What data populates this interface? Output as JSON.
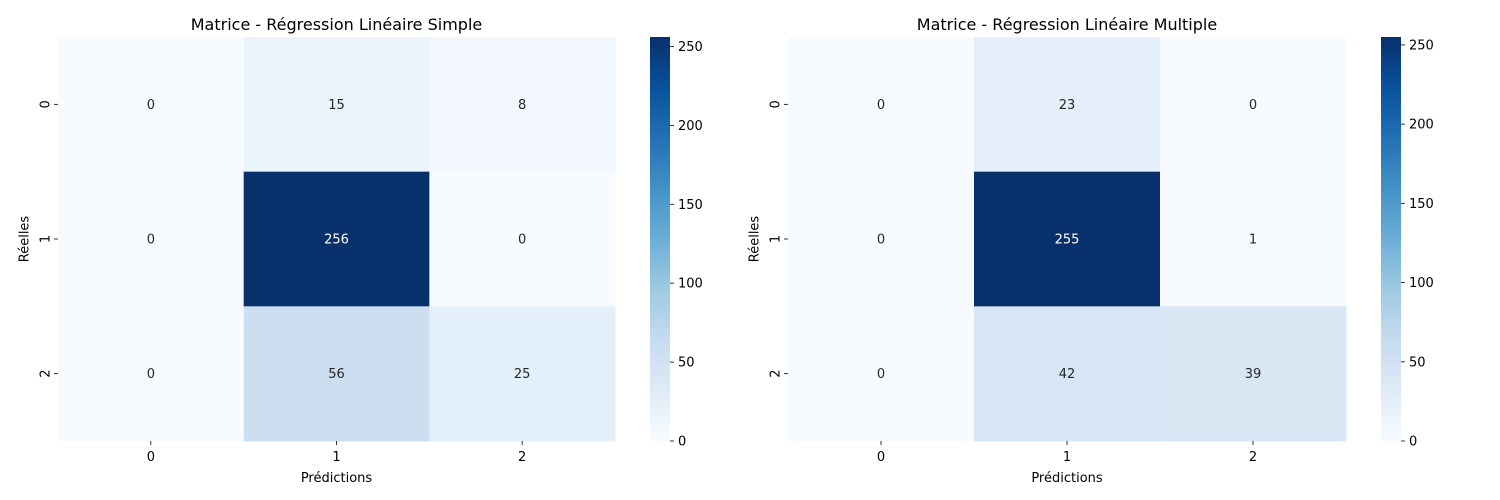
{
  "chart_data": [
    {
      "type": "heatmap",
      "title": "Matrice - Régression Linéaire Simple",
      "xlabel": "Prédictions",
      "ylabel": "Réelles",
      "x_categories": [
        "0",
        "1",
        "2"
      ],
      "y_categories": [
        "0",
        "1",
        "2"
      ],
      "values": [
        [
          0,
          15,
          8
        ],
        [
          0,
          256,
          0
        ],
        [
          0,
          56,
          25
        ]
      ],
      "colorbar": {
        "min": 0,
        "max": 256,
        "ticks": [
          0,
          50,
          100,
          150,
          200,
          250
        ]
      },
      "colormap": "Blues"
    },
    {
      "type": "heatmap",
      "title": "Matrice - Régression Linéaire Multiple",
      "xlabel": "Prédictions",
      "ylabel": "Réelles",
      "x_categories": [
        "0",
        "1",
        "2"
      ],
      "y_categories": [
        "0",
        "1",
        "2"
      ],
      "values": [
        [
          0,
          23,
          0
        ],
        [
          0,
          255,
          1
        ],
        [
          0,
          42,
          39
        ]
      ],
      "colorbar": {
        "min": 0,
        "max": 255,
        "ticks": [
          0,
          50,
          100,
          150,
          200,
          250
        ]
      },
      "colormap": "Blues"
    }
  ],
  "colors": {
    "blues": [
      "#f7fbff",
      "#deebf7",
      "#c6dbef",
      "#9ecae1",
      "#6baed6",
      "#4292c6",
      "#2171b5",
      "#08519c",
      "#08306b"
    ]
  }
}
